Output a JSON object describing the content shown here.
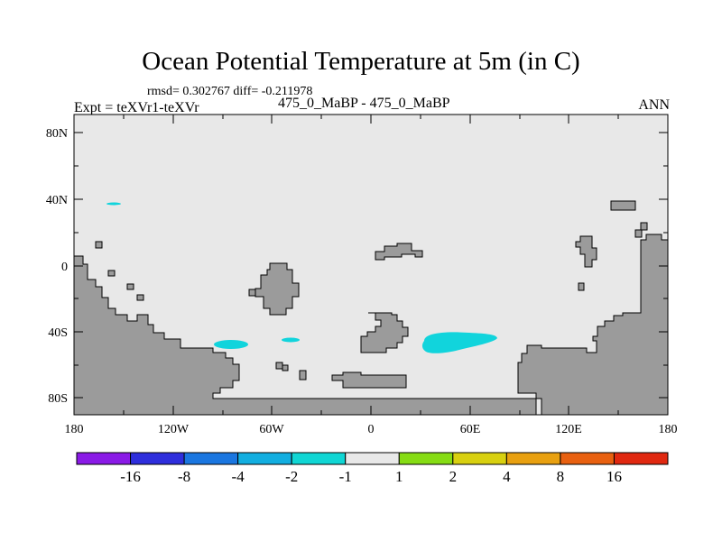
{
  "title": "Ocean Potential Temperature at 5m (in C)",
  "stats_line": "rmsd= 0.302767 diff= -0.211978",
  "expt_label": "Expt = teXVr1-teXVr",
  "center_label": "475_0_MaBP - 475_0_MaBP",
  "season_label": "ANN",
  "map": {
    "lat_ticks": [
      "80N",
      "40N",
      "0",
      "40S",
      "80S"
    ],
    "lon_ticks": [
      "180",
      "120W",
      "60W",
      "0",
      "60E",
      "120E",
      "180"
    ],
    "ocean_color": "#e8e8e8",
    "land_color": "#9b9b9b",
    "anomaly_color": "#11d4dc"
  },
  "colorbar": {
    "levels": [
      "-16",
      "-8",
      "-4",
      "-2",
      "-1",
      "1",
      "2",
      "4",
      "8",
      "16"
    ],
    "colors": [
      "#8a1ae6",
      "#2e2edc",
      "#1a76e0",
      "#12aee0",
      "#10d6d4",
      "#e8e8e8",
      "#86dc14",
      "#d8d010",
      "#e8a010",
      "#e86010",
      "#e02810"
    ]
  }
}
